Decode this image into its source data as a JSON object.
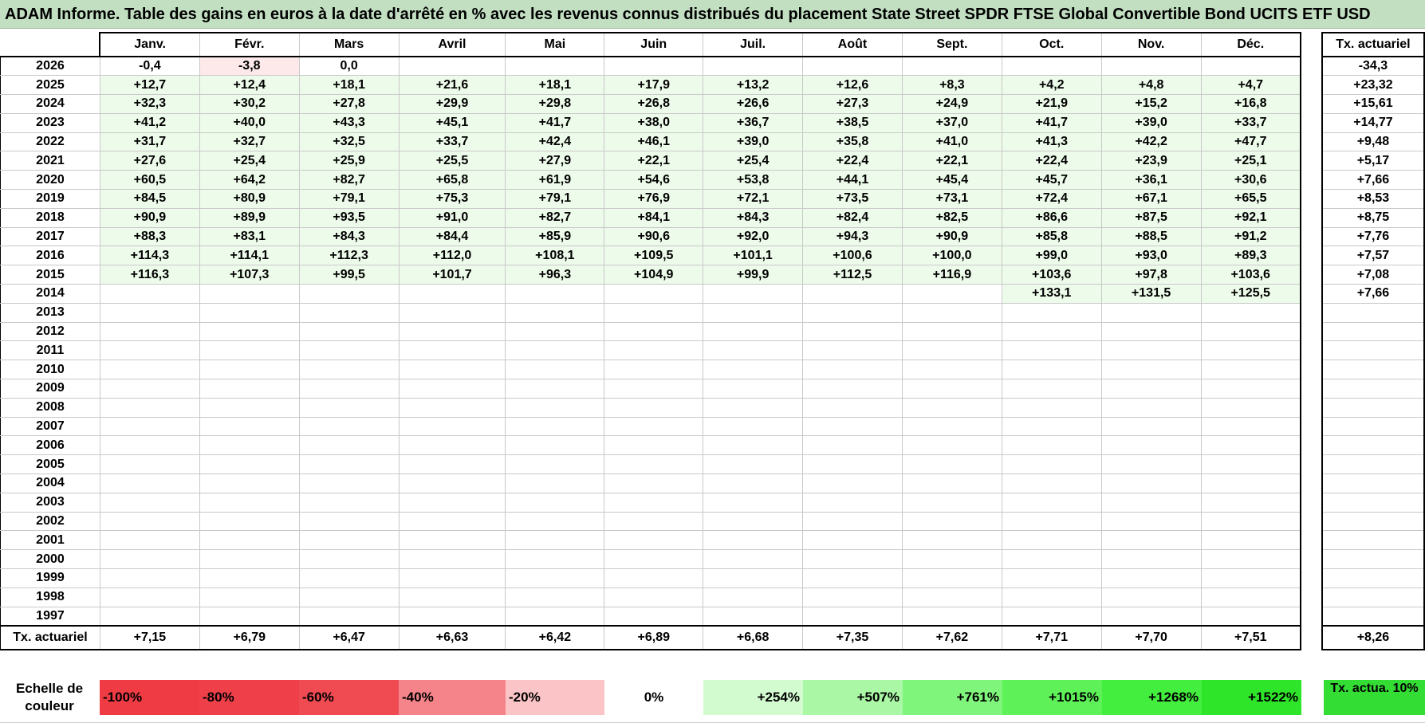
{
  "title": "ADAM Informe. Table des gains en euros à la date d'arrêté en % avec les revenus connus distribués du placement State Street SPDR FTSE Global Convertible Bond UCITS ETF USD",
  "months": [
    "Janv.",
    "Févr.",
    "Mars",
    "Avril",
    "Mai",
    "Juin",
    "Juil.",
    "Août",
    "Sept.",
    "Oct.",
    "Nov.",
    "Déc."
  ],
  "tx_header": "Tx. actuariel",
  "rows": [
    {
      "year": "2026",
      "values": [
        "-0,4",
        "-3,8",
        "0,0",
        "",
        "",
        "",
        "",
        "",
        "",
        "",
        "",
        ""
      ],
      "tx": "-34,3"
    },
    {
      "year": "2025",
      "values": [
        "+12,7",
        "+12,4",
        "+18,1",
        "+21,6",
        "+18,1",
        "+17,9",
        "+13,2",
        "+12,6",
        "+8,3",
        "+4,2",
        "+4,8",
        "+4,7"
      ],
      "tx": "+23,32"
    },
    {
      "year": "2024",
      "values": [
        "+32,3",
        "+30,2",
        "+27,8",
        "+29,9",
        "+29,8",
        "+26,8",
        "+26,6",
        "+27,3",
        "+24,9",
        "+21,9",
        "+15,2",
        "+16,8"
      ],
      "tx": "+15,61"
    },
    {
      "year": "2023",
      "values": [
        "+41,2",
        "+40,0",
        "+43,3",
        "+45,1",
        "+41,7",
        "+38,0",
        "+36,7",
        "+38,5",
        "+37,0",
        "+41,7",
        "+39,0",
        "+33,7"
      ],
      "tx": "+14,77"
    },
    {
      "year": "2022",
      "values": [
        "+31,7",
        "+32,7",
        "+32,5",
        "+33,7",
        "+42,4",
        "+46,1",
        "+39,0",
        "+35,8",
        "+41,0",
        "+41,3",
        "+42,2",
        "+47,7"
      ],
      "tx": "+9,48"
    },
    {
      "year": "2021",
      "values": [
        "+27,6",
        "+25,4",
        "+25,9",
        "+25,5",
        "+27,9",
        "+22,1",
        "+25,4",
        "+22,4",
        "+22,1",
        "+22,4",
        "+23,9",
        "+25,1"
      ],
      "tx": "+5,17"
    },
    {
      "year": "2020",
      "values": [
        "+60,5",
        "+64,2",
        "+82,7",
        "+65,8",
        "+61,9",
        "+54,6",
        "+53,8",
        "+44,1",
        "+45,4",
        "+45,7",
        "+36,1",
        "+30,6"
      ],
      "tx": "+7,66"
    },
    {
      "year": "2019",
      "values": [
        "+84,5",
        "+80,9",
        "+79,1",
        "+75,3",
        "+79,1",
        "+76,9",
        "+72,1",
        "+73,5",
        "+73,1",
        "+72,4",
        "+67,1",
        "+65,5"
      ],
      "tx": "+8,53"
    },
    {
      "year": "2018",
      "values": [
        "+90,9",
        "+89,9",
        "+93,5",
        "+91,0",
        "+82,7",
        "+84,1",
        "+84,3",
        "+82,4",
        "+82,5",
        "+86,6",
        "+87,5",
        "+92,1"
      ],
      "tx": "+8,75"
    },
    {
      "year": "2017",
      "values": [
        "+88,3",
        "+83,1",
        "+84,3",
        "+84,4",
        "+85,9",
        "+90,6",
        "+92,0",
        "+94,3",
        "+90,9",
        "+85,8",
        "+88,5",
        "+91,2"
      ],
      "tx": "+7,76"
    },
    {
      "year": "2016",
      "values": [
        "+114,3",
        "+114,1",
        "+112,3",
        "+112,0",
        "+108,1",
        "+109,5",
        "+101,1",
        "+100,6",
        "+100,0",
        "+99,0",
        "+93,0",
        "+89,3"
      ],
      "tx": "+7,57"
    },
    {
      "year": "2015",
      "values": [
        "+116,3",
        "+107,3",
        "+99,5",
        "+101,7",
        "+96,3",
        "+104,9",
        "+99,9",
        "+112,5",
        "+116,9",
        "+103,6",
        "+97,8",
        "+103,6"
      ],
      "tx": "+7,08"
    },
    {
      "year": "2014",
      "values": [
        "",
        "",
        "",
        "",
        "",
        "",
        "",
        "",
        "",
        "+133,1",
        "+131,5",
        "+125,5"
      ],
      "tx": "+7,66"
    },
    {
      "year": "2013",
      "values": [
        "",
        "",
        "",
        "",
        "",
        "",
        "",
        "",
        "",
        "",
        "",
        ""
      ],
      "tx": ""
    },
    {
      "year": "2012",
      "values": [
        "",
        "",
        "",
        "",
        "",
        "",
        "",
        "",
        "",
        "",
        "",
        ""
      ],
      "tx": ""
    },
    {
      "year": "2011",
      "values": [
        "",
        "",
        "",
        "",
        "",
        "",
        "",
        "",
        "",
        "",
        "",
        ""
      ],
      "tx": ""
    },
    {
      "year": "2010",
      "values": [
        "",
        "",
        "",
        "",
        "",
        "",
        "",
        "",
        "",
        "",
        "",
        ""
      ],
      "tx": ""
    },
    {
      "year": "2009",
      "values": [
        "",
        "",
        "",
        "",
        "",
        "",
        "",
        "",
        "",
        "",
        "",
        ""
      ],
      "tx": ""
    },
    {
      "year": "2008",
      "values": [
        "",
        "",
        "",
        "",
        "",
        "",
        "",
        "",
        "",
        "",
        "",
        ""
      ],
      "tx": ""
    },
    {
      "year": "2007",
      "values": [
        "",
        "",
        "",
        "",
        "",
        "",
        "",
        "",
        "",
        "",
        "",
        ""
      ],
      "tx": ""
    },
    {
      "year": "2006",
      "values": [
        "",
        "",
        "",
        "",
        "",
        "",
        "",
        "",
        "",
        "",
        "",
        ""
      ],
      "tx": ""
    },
    {
      "year": "2005",
      "values": [
        "",
        "",
        "",
        "",
        "",
        "",
        "",
        "",
        "",
        "",
        "",
        ""
      ],
      "tx": ""
    },
    {
      "year": "2004",
      "values": [
        "",
        "",
        "",
        "",
        "",
        "",
        "",
        "",
        "",
        "",
        "",
        ""
      ],
      "tx": ""
    },
    {
      "year": "2003",
      "values": [
        "",
        "",
        "",
        "",
        "",
        "",
        "",
        "",
        "",
        "",
        "",
        ""
      ],
      "tx": ""
    },
    {
      "year": "2002",
      "values": [
        "",
        "",
        "",
        "",
        "",
        "",
        "",
        "",
        "",
        "",
        "",
        ""
      ],
      "tx": ""
    },
    {
      "year": "2001",
      "values": [
        "",
        "",
        "",
        "",
        "",
        "",
        "",
        "",
        "",
        "",
        "",
        ""
      ],
      "tx": ""
    },
    {
      "year": "2000",
      "values": [
        "",
        "",
        "",
        "",
        "",
        "",
        "",
        "",
        "",
        "",
        "",
        ""
      ],
      "tx": ""
    },
    {
      "year": "1999",
      "values": [
        "",
        "",
        "",
        "",
        "",
        "",
        "",
        "",
        "",
        "",
        "",
        ""
      ],
      "tx": ""
    },
    {
      "year": "1998",
      "values": [
        "",
        "",
        "",
        "",
        "",
        "",
        "",
        "",
        "",
        "",
        "",
        ""
      ],
      "tx": ""
    },
    {
      "year": "1997",
      "values": [
        "",
        "",
        "",
        "",
        "",
        "",
        "",
        "",
        "",
        "",
        "",
        ""
      ],
      "tx": ""
    }
  ],
  "tx_row": {
    "label": "Tx. actuariel",
    "values": [
      "+7,15",
      "+6,79",
      "+6,47",
      "+6,63",
      "+6,42",
      "+6,89",
      "+6,68",
      "+7,35",
      "+7,62",
      "+7,71",
      "+7,70",
      "+7,51"
    ],
    "total": "+8,26"
  },
  "scale": {
    "label": "Echelle de couleur",
    "items": [
      {
        "text": "-100%",
        "color": "#ee3b44",
        "align": "left"
      },
      {
        "text": "-80%",
        "color": "#ef404a",
        "align": "left"
      },
      {
        "text": "-60%",
        "color": "#f04a52",
        "align": "left"
      },
      {
        "text": "-40%",
        "color": "#f48489",
        "align": "left"
      },
      {
        "text": "-20%",
        "color": "#fbc4c6",
        "align": "left"
      },
      {
        "text": "0%",
        "color": "#ffffff",
        "align": "center"
      },
      {
        "text": "+254%",
        "color": "#d3fbd0",
        "align": "right"
      },
      {
        "text": "+507%",
        "color": "#aaf7a6",
        "align": "right"
      },
      {
        "text": "+761%",
        "color": "#80f57b",
        "align": "right"
      },
      {
        "text": "+1015%",
        "color": "#5ef258",
        "align": "right"
      },
      {
        "text": "+1268%",
        "color": "#44ee3e",
        "align": "right"
      },
      {
        "text": "+1522%",
        "color": "#2fe529",
        "align": "right"
      }
    ],
    "tx_label": "Tx. actua. 10%",
    "tx_color": "#33dd33"
  },
  "colors": {
    "positive_cell": "#edfbea",
    "negative_cell": "#fde9e9",
    "title_bar": "#c2dfc2"
  }
}
